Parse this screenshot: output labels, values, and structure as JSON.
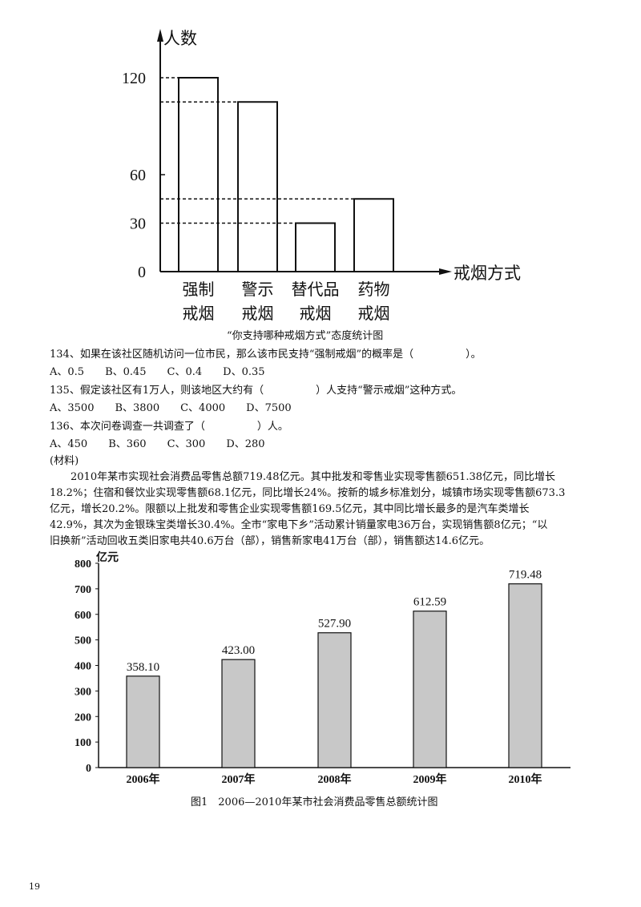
{
  "chart_data": [
    {
      "type": "bar",
      "title": "“你支持哪种戒烟方式”态度统计图",
      "ylabel": "人数",
      "xlabel": "戒烟方式",
      "yticks": [
        0,
        30,
        60,
        120
      ],
      "ylim": [
        0,
        140
      ],
      "categories": [
        [
          "强制",
          "戒烟"
        ],
        [
          "警示",
          "戒烟"
        ],
        [
          "替代品",
          "戒烟"
        ],
        [
          "药物",
          "戒烟"
        ]
      ],
      "values": [
        120,
        105,
        30,
        45
      ],
      "bar_fill": "#ffffff",
      "dashed_guides": true
    },
    {
      "type": "bar",
      "title": "图1　2006—2010年某市社会消费品零售总额统计图",
      "ylabel": "亿元",
      "yticks": [
        0,
        100,
        200,
        300,
        400,
        500,
        600,
        700,
        800
      ],
      "ylim": [
        0,
        800
      ],
      "categories": [
        "2006年",
        "2007年",
        "2008年",
        "2009年",
        "2010年"
      ],
      "values": [
        358.1,
        423.0,
        527.9,
        612.59,
        719.48
      ],
      "data_labels": [
        "358.10",
        "423.00",
        "527.90",
        "612.59",
        "719.48"
      ],
      "bar_fill": "#c8c8c8"
    }
  ],
  "questions": [
    {
      "text": "134、如果在该社区随机访问一位市民，那么该市民支持“强制戒烟”的概率是（　　　　　）。",
      "options": "A、0.5　　B、0.45　　C、0.4　　D、0.35"
    },
    {
      "text": "135、假定该社区有1万人，则该地区大约有（　　　　　）人支持“警示戒烟”这种方式。",
      "options": "A、3500　　B、3800　　C、4000　　D、7500"
    },
    {
      "text": "136、本次问卷调查一共调查了（　　　　　）人。",
      "options": "A、450　　B、360　　C、300　　D、280"
    }
  ],
  "material": {
    "label": "(材料)",
    "lines": [
      "　　2010年某市实现社会消费品零售总额719.48亿元。其中批发和零售业实现零售额651.38亿元，同比增长",
      "18.2%；住宿和餐饮业实现零售额68.1亿元，同比增长24%。按新的城乡标准划分，城镇市场实现零售额673.3",
      "亿元，增长20.2%。限额以上批发和零售企业实现零售额169.5亿元，其中同比增长最多的是汽车类增长",
      "42.9%，其次为金银珠宝类增长30.4%。全市“家电下乡”活动累计销量家电36万台，实现销售额8亿元；“以",
      "旧换新”活动回收五类旧家电共40.6万台（部），销售新家电41万台（部），销售额达14.6亿元。"
    ]
  },
  "page_number": "19"
}
